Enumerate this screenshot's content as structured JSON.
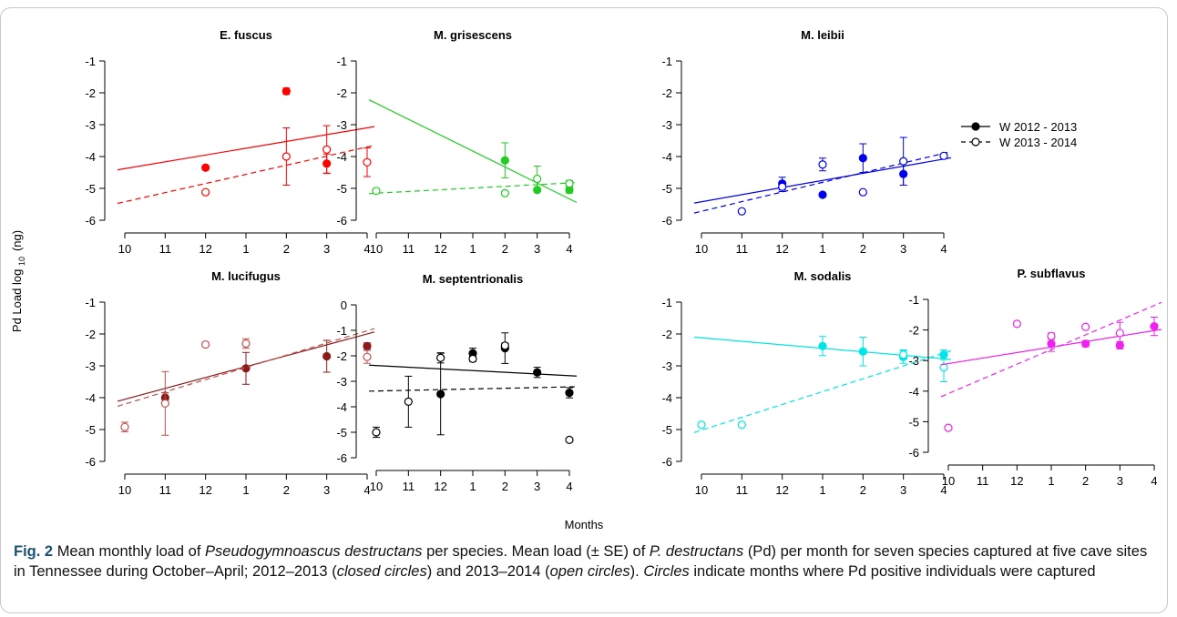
{
  "figure": {
    "xlabel": "Months",
    "ylabel_main": "Pd Load log",
    "ylabel_sub": "10",
    "ylabel_unit": "(ng)",
    "legend": [
      {
        "label": "W 2012 - 2013",
        "symbol": "closed-circle",
        "line": "solid"
      },
      {
        "label": "W 2013 - 2014",
        "symbol": "open-circle",
        "line": "dashed"
      }
    ]
  },
  "caption": {
    "fig_label": "Fig. 2",
    "p1": "Mean monthly load of",
    "p2": "Pseudogymnoascus destructans",
    "p3": "per species. Mean load (± SE) of",
    "p4": "P. destructans",
    "p5": "(Pd) per month for seven species captured at five cave sites in Tennessee during October–April; 2012–2013 (",
    "p6": "closed circles",
    "p7": ") and 2013–2014 (",
    "p8": "open circles",
    "p9": ").",
    "p10": "Circles",
    "p11": "indicate months where Pd positive individuals were captured"
  },
  "chart_data": [
    {
      "type": "scatter",
      "title": "E. fuscus",
      "color": "#ff0000",
      "x_ticks": [
        "10",
        "11",
        "12",
        "1",
        "2",
        "3",
        "4"
      ],
      "ylim": [
        -6,
        -1
      ],
      "y_ticks": [
        "-1",
        "-2",
        "-3",
        "-4",
        "-5",
        "-6"
      ],
      "series": [
        {
          "name": "W 2012 - 2013",
          "points": [
            {
              "month": "12",
              "y": -4.35
            },
            {
              "month": "2",
              "y": -1.95,
              "se": 0.1
            },
            {
              "month": "3",
              "y": -4.22,
              "se": 0.3
            }
          ],
          "fit": {
            "y_at_10": -4.38,
            "y_at_4": -3.1
          }
        },
        {
          "name": "W 2013 - 2014",
          "points": [
            {
              "month": "12",
              "y": -5.12
            },
            {
              "month": "2",
              "y": -4.0,
              "se": 0.9
            },
            {
              "month": "3",
              "y": -3.78,
              "se": 0.75
            },
            {
              "month": "4",
              "y": -4.18,
              "se": 0.45
            }
          ],
          "fit": {
            "y_at_10": -5.42,
            "y_at_4": -3.7
          }
        }
      ]
    },
    {
      "type": "scatter",
      "title": "M. grisescens",
      "color": "#22cc22",
      "x_ticks": [
        "10",
        "11",
        "12",
        "1",
        "2",
        "3",
        "4"
      ],
      "ylim": [
        -6,
        -1
      ],
      "y_ticks": [
        "-1",
        "-2",
        "-3",
        "-4",
        "-5",
        "-6"
      ],
      "series": [
        {
          "name": "W 2012 - 2013",
          "points": [
            {
              "month": "2",
              "y": -4.12,
              "se": 0.55
            },
            {
              "month": "3",
              "y": -5.05
            },
            {
              "month": "4",
              "y": -5.05,
              "se": 0.1
            }
          ],
          "fit": {
            "y_at_10": -2.33,
            "y_at_4": -5.33
          }
        },
        {
          "name": "W 2013 - 2014",
          "points": [
            {
              "month": "10",
              "y": -5.08
            },
            {
              "month": "2",
              "y": -5.15,
              "se": 0.05
            },
            {
              "month": "3",
              "y": -4.7,
              "se": 0.4
            },
            {
              "month": "4",
              "y": -4.85,
              "se": 0.1
            }
          ],
          "fit": {
            "y_at_10": -5.15,
            "y_at_4": -4.83
          }
        }
      ]
    },
    {
      "type": "scatter",
      "title": "M. leibii",
      "color": "#0000ee",
      "x_ticks": [
        "10",
        "11",
        "12",
        "1",
        "2",
        "3",
        "4"
      ],
      "ylim": [
        -6,
        -1
      ],
      "y_ticks": [
        "-1",
        "-2",
        "-3",
        "-4",
        "-5",
        "-6"
      ],
      "series": [
        {
          "name": "W 2012 - 2013",
          "points": [
            {
              "month": "12",
              "y": -4.85,
              "se": 0.2
            },
            {
              "month": "1",
              "y": -5.2
            },
            {
              "month": "2",
              "y": -4.05,
              "se": 0.45
            },
            {
              "month": "3",
              "y": -4.55,
              "se": 0.35
            }
          ],
          "fit": {
            "y_at_10": -5.42,
            "y_at_4": -4.08
          }
        },
        {
          "name": "W 2013 - 2014",
          "points": [
            {
              "month": "11",
              "y": -5.72
            },
            {
              "month": "12",
              "y": -4.95,
              "se": 0.15
            },
            {
              "month": "1",
              "y": -4.25,
              "se": 0.2
            },
            {
              "month": "2",
              "y": -5.12,
              "se": 0.05
            },
            {
              "month": "3",
              "y": -4.15,
              "se": 0.75
            },
            {
              "month": "4",
              "y": -3.98
            }
          ],
          "fit": {
            "y_at_10": -5.72,
            "y_at_4": -3.9
          }
        }
      ]
    },
    {
      "type": "scatter",
      "title": "M. lucifugus",
      "color": "#8b1a1a",
      "open_color": "#c0504d",
      "x_ticks": [
        "10",
        "11",
        "12",
        "1",
        "2",
        "3",
        "4"
      ],
      "ylim": [
        -6,
        -1
      ],
      "y_ticks": [
        "-1",
        "-2",
        "-3",
        "-4",
        "-5",
        "-6"
      ],
      "series": [
        {
          "name": "W 2012 - 2013",
          "points": [
            {
              "month": "11",
              "y": -4.0,
              "se": 0.15
            },
            {
              "month": "1",
              "y": -3.08,
              "se": 0.5
            },
            {
              "month": "3",
              "y": -2.7,
              "se": 0.5
            },
            {
              "month": "4",
              "y": -2.38,
              "se": 0.1
            }
          ],
          "fit": {
            "y_at_10": -4.05,
            "y_at_4": -2.0
          }
        },
        {
          "name": "W 2013 - 2014",
          "points": [
            {
              "month": "10",
              "y": -4.92,
              "se": 0.15
            },
            {
              "month": "11",
              "y": -4.18,
              "se": 1.0
            },
            {
              "month": "12",
              "y": -2.33
            },
            {
              "month": "1",
              "y": -2.3,
              "se": 0.15
            },
            {
              "month": "4",
              "y": -2.72,
              "se": 0.2
            }
          ],
          "fit": {
            "y_at_10": -4.2,
            "y_at_4": -1.9
          }
        }
      ]
    },
    {
      "type": "scatter",
      "title": "M. septentrionalis",
      "color": "#000000",
      "x_ticks": [
        "10",
        "11",
        "12",
        "1",
        "2",
        "3",
        "4"
      ],
      "ylim": [
        -6,
        0
      ],
      "y_ticks": [
        "0",
        "-1",
        "-2",
        "-3",
        "-4",
        "-5",
        "-6"
      ],
      "series": [
        {
          "name": "W 2012 - 2013",
          "points": [
            {
              "month": "12",
              "y": -3.5,
              "se": 1.6
            },
            {
              "month": "1",
              "y": -1.9,
              "se": 0.2
            },
            {
              "month": "2",
              "y": -1.7,
              "se": 0.6
            },
            {
              "month": "3",
              "y": -2.65,
              "se": 0.2
            },
            {
              "month": "4",
              "y": -3.45,
              "se": 0.2
            }
          ],
          "fit": {
            "y_at_10": -2.38,
            "y_at_4": -2.78
          }
        },
        {
          "name": "W 2013 - 2014",
          "points": [
            {
              "month": "10",
              "y": -5.0,
              "se": 0.2
            },
            {
              "month": "11",
              "y": -3.8,
              "se": 1.0
            },
            {
              "month": "12",
              "y": -2.08,
              "se": 0.2
            },
            {
              "month": "1",
              "y": -2.12,
              "se": 0.1
            },
            {
              "month": "2",
              "y": -1.6,
              "se": 0.1
            },
            {
              "month": "4",
              "y": -5.3
            }
          ],
          "fit": {
            "y_at_10": -3.38,
            "y_at_4": -3.22
          }
        }
      ]
    },
    {
      "type": "scatter",
      "title": "M. sodalis",
      "color": "#00e5e5",
      "x_ticks": [
        "10",
        "11",
        "12",
        "1",
        "2",
        "3",
        "4"
      ],
      "ylim": [
        -6,
        -1
      ],
      "y_ticks": [
        "-1",
        "-2",
        "-3",
        "-4",
        "-5",
        "-6"
      ],
      "series": [
        {
          "name": "W 2012 - 2013",
          "points": [
            {
              "month": "1",
              "y": -2.38,
              "se": 0.3
            },
            {
              "month": "2",
              "y": -2.55,
              "se": 0.45
            },
            {
              "month": "3",
              "y": -2.72,
              "se": 0.2
            },
            {
              "month": "4",
              "y": -2.65,
              "se": 0.15
            }
          ],
          "fit": {
            "y_at_10": -2.12,
            "y_at_4": -2.78
          }
        },
        {
          "name": "W 2013 - 2014",
          "points": [
            {
              "month": "10",
              "y": -4.85
            },
            {
              "month": "11",
              "y": -4.85
            },
            {
              "month": "3",
              "y": -2.65,
              "se": 0.15
            },
            {
              "month": "4",
              "y": -3.05,
              "se": 0.45
            }
          ],
          "fit": {
            "y_at_10": -5.02,
            "y_at_4": -2.6
          }
        }
      ]
    },
    {
      "type": "scatter",
      "title": "P. subflavus",
      "color": "#ee22ee",
      "x_ticks": [
        "10",
        "11",
        "12",
        "1",
        "2",
        "3",
        "4"
      ],
      "ylim": [
        -6,
        -1
      ],
      "y_ticks": [
        "-1",
        "-2",
        "-3",
        "-4",
        "-5",
        "-6"
      ],
      "series": [
        {
          "name": "W 2012 - 2013",
          "points": [
            {
              "month": "1",
              "y": -2.45,
              "se": 0.25
            },
            {
              "month": "2",
              "y": -2.45,
              "se": 0.1
            },
            {
              "month": "3",
              "y": -2.5,
              "se": 0.12
            },
            {
              "month": "4",
              "y": -1.88,
              "se": 0.3
            }
          ],
          "fit": {
            "y_at_10": -3.1,
            "y_at_4": -2.02
          }
        },
        {
          "name": "W 2013 - 2014",
          "points": [
            {
              "month": "10",
              "y": -5.2
            },
            {
              "month": "12",
              "y": -1.8
            },
            {
              "month": "1",
              "y": -2.2,
              "se": 0.1
            },
            {
              "month": "2",
              "y": -1.9
            },
            {
              "month": "3",
              "y": -2.1,
              "se": 0.35
            }
          ],
          "fit": {
            "y_at_10": -4.08,
            "y_at_4": -1.2
          }
        }
      ]
    }
  ]
}
